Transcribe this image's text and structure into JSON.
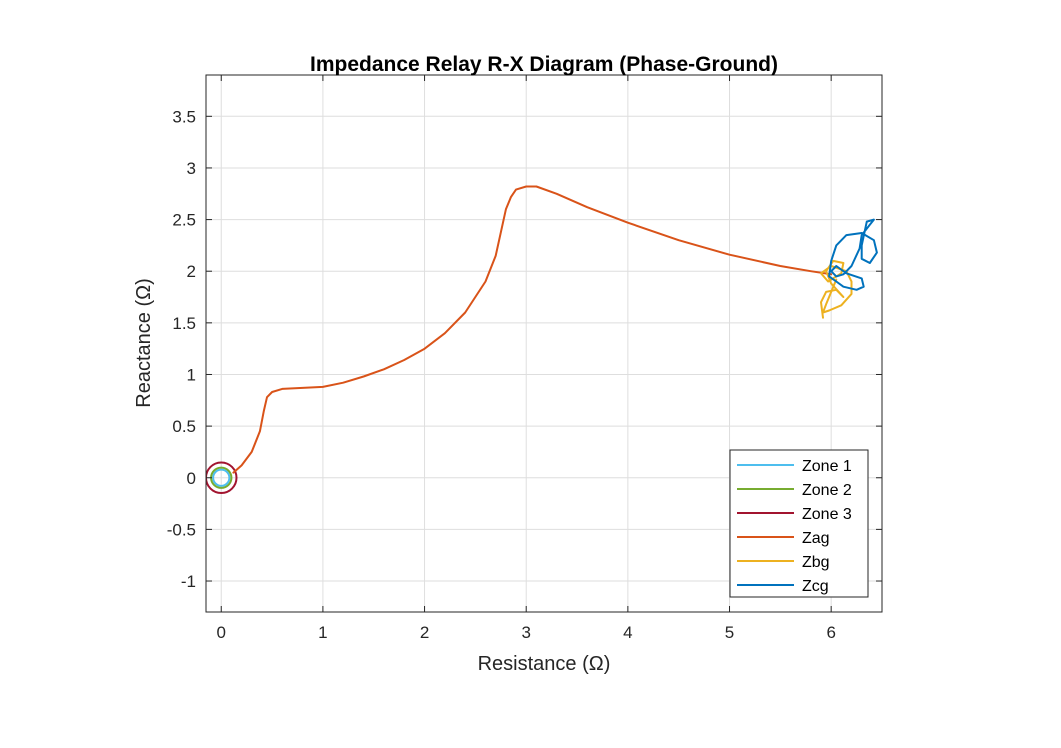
{
  "chart_data": {
    "type": "line",
    "title": "Impedance Relay R-X Diagram (Phase-Ground)",
    "xlabel": "Resistance (Ω)",
    "ylabel": "Reactance (Ω)",
    "xlim": [
      -0.15,
      6.5
    ],
    "ylim": [
      -1.3,
      3.9
    ],
    "xticks": [
      0,
      1,
      2,
      3,
      4,
      5,
      6
    ],
    "yticks": [
      -1,
      -0.5,
      0,
      0.5,
      1,
      1.5,
      2,
      2.5,
      3,
      3.5
    ],
    "grid": true,
    "legend_position": "bottom-right",
    "series": [
      {
        "name": "Zone 1",
        "color": "#4DBEEE",
        "kind": "circle",
        "center": [
          0,
          0
        ],
        "radius": 0.08
      },
      {
        "name": "Zone 2",
        "color": "#77AC30",
        "kind": "circle",
        "center": [
          0,
          0
        ],
        "radius": 0.1
      },
      {
        "name": "Zone 3",
        "color": "#A2142F",
        "kind": "circle",
        "center": [
          0,
          0
        ],
        "radius": 0.15
      },
      {
        "name": "Zag",
        "color": "#D95319",
        "kind": "trace",
        "points": [
          [
            0.12,
            0.05
          ],
          [
            0.2,
            0.12
          ],
          [
            0.3,
            0.25
          ],
          [
            0.38,
            0.45
          ],
          [
            0.42,
            0.65
          ],
          [
            0.45,
            0.78
          ],
          [
            0.5,
            0.83
          ],
          [
            0.6,
            0.86
          ],
          [
            0.8,
            0.87
          ],
          [
            1.0,
            0.88
          ],
          [
            1.2,
            0.92
          ],
          [
            1.4,
            0.98
          ],
          [
            1.6,
            1.05
          ],
          [
            1.8,
            1.14
          ],
          [
            2.0,
            1.25
          ],
          [
            2.2,
            1.4
          ],
          [
            2.4,
            1.6
          ],
          [
            2.6,
            1.9
          ],
          [
            2.7,
            2.15
          ],
          [
            2.8,
            2.6
          ],
          [
            2.85,
            2.72
          ],
          [
            2.9,
            2.79
          ],
          [
            3.0,
            2.82
          ],
          [
            3.1,
            2.82
          ],
          [
            3.3,
            2.75
          ],
          [
            3.6,
            2.62
          ],
          [
            4.0,
            2.47
          ],
          [
            4.5,
            2.3
          ],
          [
            5.0,
            2.16
          ],
          [
            5.5,
            2.05
          ],
          [
            5.8,
            2.0
          ],
          [
            6.0,
            1.97
          ]
        ]
      },
      {
        "name": "Zbg",
        "color": "#EDB120",
        "kind": "trace",
        "points": [
          [
            5.92,
            1.55
          ],
          [
            5.9,
            1.7
          ],
          [
            5.95,
            1.8
          ],
          [
            6.05,
            1.82
          ],
          [
            6.12,
            1.75
          ],
          [
            6.0,
            1.88
          ],
          [
            5.95,
            2.0
          ],
          [
            6.02,
            2.1
          ],
          [
            6.12,
            2.08
          ],
          [
            6.1,
            1.98
          ],
          [
            5.97,
            1.9
          ],
          [
            5.9,
            1.98
          ],
          [
            6.0,
            2.05
          ],
          [
            6.15,
            2.0
          ],
          [
            6.2,
            1.9
          ],
          [
            6.2,
            1.78
          ],
          [
            6.1,
            1.67
          ],
          [
            5.98,
            1.62
          ],
          [
            5.92,
            1.6
          ],
          [
            5.95,
            1.68
          ],
          [
            6.05,
            1.92
          ]
        ]
      },
      {
        "name": "Zcg",
        "color": "#0072BD",
        "kind": "trace",
        "points": [
          [
            5.98,
            1.95
          ],
          [
            6.0,
            2.1
          ],
          [
            6.05,
            2.25
          ],
          [
            6.15,
            2.35
          ],
          [
            6.3,
            2.37
          ],
          [
            6.42,
            2.3
          ],
          [
            6.45,
            2.18
          ],
          [
            6.38,
            2.08
          ],
          [
            6.3,
            2.12
          ],
          [
            6.3,
            2.25
          ],
          [
            6.35,
            2.48
          ],
          [
            6.42,
            2.5
          ],
          [
            6.38,
            2.45
          ],
          [
            6.3,
            2.35
          ],
          [
            6.28,
            2.22
          ],
          [
            6.2,
            2.05
          ],
          [
            6.12,
            1.97
          ],
          [
            6.05,
            1.95
          ],
          [
            6.0,
            2.0
          ],
          [
            6.05,
            2.05
          ],
          [
            6.15,
            1.98
          ],
          [
            6.3,
            1.93
          ],
          [
            6.32,
            1.85
          ],
          [
            6.25,
            1.82
          ],
          [
            6.12,
            1.85
          ],
          [
            6.05,
            1.9
          ],
          [
            5.98,
            1.95
          ]
        ]
      }
    ]
  }
}
